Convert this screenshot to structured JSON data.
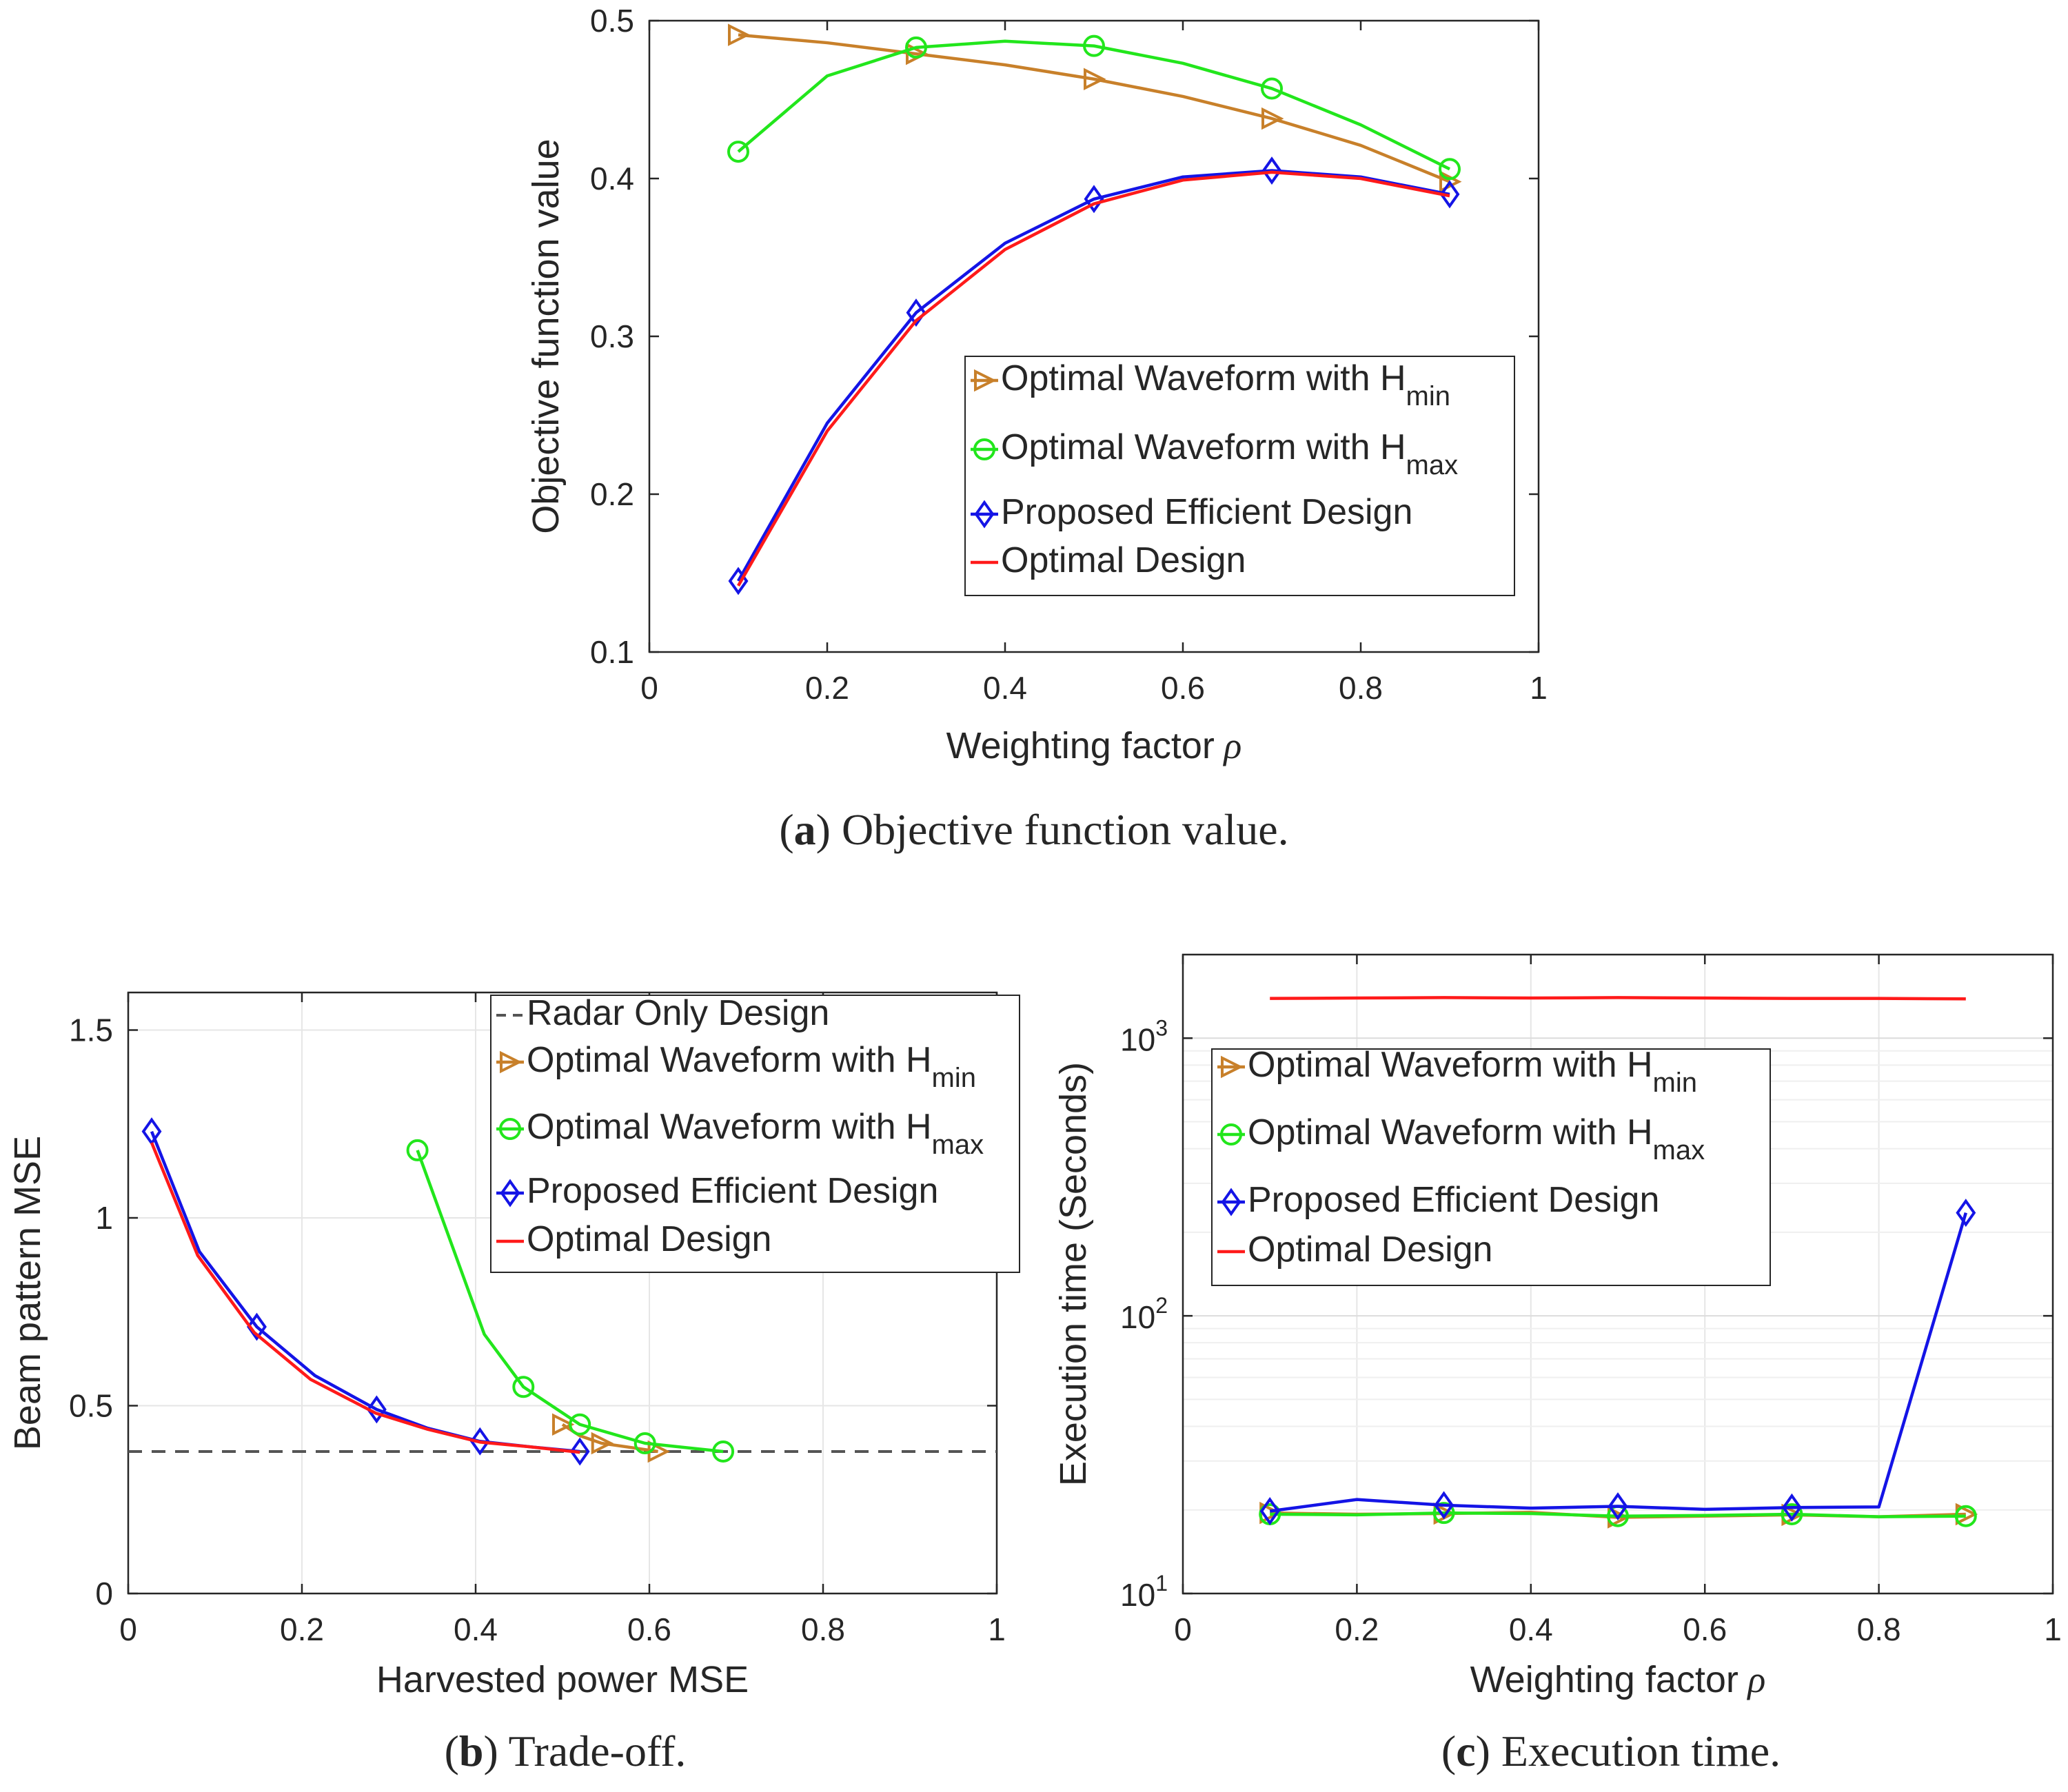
{
  "colors": {
    "hmin": "#C8802A",
    "hmax": "#22E61C",
    "proposed": "#1414E6",
    "optimal": "#FF1A1A",
    "radar": "#555555",
    "axis": "#262626",
    "grid": "#e6e6e6"
  },
  "chart_data": [
    {
      "id": "a",
      "type": "line",
      "caption": {
        "letter": "a",
        "text": " Objective function value."
      },
      "xlabel": "Weighting factor",
      "xlabel_symbol": "ρ",
      "ylabel": "Objective function value",
      "xlim": [
        0,
        1
      ],
      "ylim": [
        0.1,
        0.5
      ],
      "xticks": [
        "0",
        "0.2",
        "0.4",
        "0.6",
        "0.8",
        "1"
      ],
      "yticks": [
        "0.1",
        "0.2",
        "0.3",
        "0.4",
        "0.5"
      ],
      "grid": false,
      "legend_position": "inside-right",
      "legend": [
        {
          "base": "Optimal Waveform with H",
          "sub": "min"
        },
        {
          "base": "Optimal Waveform with H",
          "sub": "max"
        },
        {
          "base": "Proposed Efficient Design",
          "sub": ""
        },
        {
          "base": "Optimal Design",
          "sub": ""
        }
      ],
      "series": [
        {
          "key": "hmin",
          "marker": "triangle-right",
          "x": [
            0.1,
            0.2,
            0.3,
            0.4,
            0.5,
            0.6,
            0.7,
            0.8,
            0.9
          ],
          "y": [
            0.491,
            0.486,
            0.479,
            0.472,
            0.463,
            0.452,
            0.438,
            0.421,
            0.398
          ],
          "marker_x": [
            0.1,
            0.3,
            0.5,
            0.7,
            0.9
          ]
        },
        {
          "key": "hmax",
          "marker": "circle",
          "x": [
            0.1,
            0.2,
            0.3,
            0.4,
            0.5,
            0.6,
            0.7,
            0.8,
            0.9
          ],
          "y": [
            0.417,
            0.465,
            0.483,
            0.487,
            0.484,
            0.473,
            0.457,
            0.434,
            0.406
          ],
          "marker_x": [
            0.1,
            0.3,
            0.5,
            0.7,
            0.9
          ]
        },
        {
          "key": "proposed",
          "marker": "diamond",
          "x": [
            0.1,
            0.2,
            0.3,
            0.4,
            0.5,
            0.6,
            0.7,
            0.8,
            0.9
          ],
          "y": [
            0.145,
            0.245,
            0.315,
            0.359,
            0.387,
            0.401,
            0.405,
            0.401,
            0.39
          ],
          "marker_x": [
            0.1,
            0.3,
            0.5,
            0.7,
            0.9
          ]
        },
        {
          "key": "optimal",
          "marker": "none",
          "x": [
            0.1,
            0.2,
            0.3,
            0.4,
            0.5,
            0.6,
            0.7,
            0.8,
            0.9
          ],
          "y": [
            0.142,
            0.24,
            0.31,
            0.355,
            0.384,
            0.399,
            0.404,
            0.4,
            0.389
          ],
          "marker_x": []
        }
      ]
    },
    {
      "id": "b",
      "type": "line",
      "caption": {
        "letter": "b",
        "text": " Trade-off."
      },
      "xlabel": "Harvested power MSE",
      "xlabel_symbol": "",
      "ylabel": "Beam pattern MSE",
      "xlim": [
        0,
        1
      ],
      "ylim": [
        0,
        1.6
      ],
      "xticks": [
        "0",
        "0.2",
        "0.4",
        "0.6",
        "0.8",
        "1"
      ],
      "yticks": [
        "0",
        "0.5",
        "1",
        "1.5"
      ],
      "grid": true,
      "legend_position": "top-right",
      "legend": [
        {
          "base": "Radar Only Design",
          "sub": ""
        },
        {
          "base": "Optimal Waveform with H",
          "sub": "min"
        },
        {
          "base": "Optimal Waveform with H",
          "sub": "max"
        },
        {
          "base": "Proposed Efficient Design",
          "sub": ""
        },
        {
          "base": "Optimal Design",
          "sub": ""
        }
      ],
      "reference_line": {
        "key": "radar",
        "y": 0.378
      },
      "series": [
        {
          "key": "hmin",
          "marker": "triangle-right",
          "x": [
            0.5,
            0.52,
            0.545,
            0.575,
            0.61
          ],
          "y": [
            0.45,
            0.42,
            0.4,
            0.39,
            0.378
          ],
          "marker_x": [
            0.5,
            0.545,
            0.61
          ]
        },
        {
          "key": "hmax",
          "marker": "circle",
          "x": [
            0.333,
            0.41,
            0.455,
            0.52,
            0.595,
            0.685
          ],
          "y": [
            1.18,
            0.69,
            0.55,
            0.45,
            0.4,
            0.378
          ],
          "marker_x": [
            0.333,
            0.455,
            0.52,
            0.595,
            0.685
          ]
        },
        {
          "key": "proposed",
          "marker": "diamond",
          "x": [
            0.027,
            0.082,
            0.148,
            0.215,
            0.286,
            0.345,
            0.405,
            0.465,
            0.52
          ],
          "y": [
            1.23,
            0.91,
            0.71,
            0.58,
            0.49,
            0.44,
            0.405,
            0.39,
            0.378
          ],
          "marker_x": [
            0.027,
            0.148,
            0.286,
            0.405,
            0.52
          ]
        },
        {
          "key": "optimal",
          "marker": "none",
          "x": [
            0.027,
            0.08,
            0.145,
            0.21,
            0.285,
            0.345,
            0.405,
            0.465,
            0.52
          ],
          "y": [
            1.2,
            0.9,
            0.695,
            0.57,
            0.48,
            0.437,
            0.403,
            0.39,
            0.376
          ],
          "marker_x": []
        }
      ]
    },
    {
      "id": "c",
      "type": "line",
      "caption": {
        "letter": "c",
        "text": " Execution time."
      },
      "xlabel": "Weighting factor",
      "xlabel_symbol": "ρ",
      "ylabel": "Execution time (Seconds)",
      "xlim": [
        0,
        1
      ],
      "ylim": [
        10,
        2000
      ],
      "yscale": "log",
      "xticks": [
        "0",
        "0.2",
        "0.4",
        "0.6",
        "0.8",
        "1"
      ],
      "yticks": [
        {
          "base": "10",
          "exp": "1"
        },
        {
          "base": "10",
          "exp": "2"
        },
        {
          "base": "10",
          "exp": "3"
        }
      ],
      "grid": true,
      "legend_position": "top-left",
      "legend": [
        {
          "base": "Optimal Waveform with H",
          "sub": "min"
        },
        {
          "base": "Optimal Waveform with H",
          "sub": "max"
        },
        {
          "base": "Proposed Efficient Design",
          "sub": ""
        },
        {
          "base": "Optimal Design",
          "sub": ""
        }
      ],
      "series": [
        {
          "key": "hmin",
          "marker": "triangle-right",
          "x": [
            0.1,
            0.2,
            0.3,
            0.4,
            0.5,
            0.6,
            0.7,
            0.8,
            0.9
          ],
          "y": [
            19.5,
            19.3,
            19.4,
            19.6,
            18.8,
            19.0,
            19.2,
            18.9,
            19.3
          ],
          "marker_x": [
            0.1,
            0.3,
            0.5,
            0.7,
            0.9
          ]
        },
        {
          "key": "hmax",
          "marker": "circle",
          "x": [
            0.1,
            0.2,
            0.3,
            0.4,
            0.5,
            0.6,
            0.7,
            0.8,
            0.9
          ],
          "y": [
            19.3,
            19.2,
            19.5,
            19.4,
            19.0,
            19.1,
            19.3,
            18.9,
            19.0
          ],
          "marker_x": [
            0.1,
            0.3,
            0.5,
            0.7,
            0.9
          ]
        },
        {
          "key": "proposed",
          "marker": "diamond",
          "x": [
            0.1,
            0.2,
            0.3,
            0.4,
            0.5,
            0.6,
            0.7,
            0.8,
            0.9
          ],
          "y": [
            19.8,
            21.8,
            20.8,
            20.3,
            20.6,
            20.1,
            20.4,
            20.5,
            235
          ],
          "marker_x": [
            0.1,
            0.3,
            0.5,
            0.7,
            0.9
          ]
        },
        {
          "key": "optimal",
          "marker": "none",
          "x": [
            0.1,
            0.2,
            0.3,
            0.4,
            0.5,
            0.6,
            0.7,
            0.8,
            0.9
          ],
          "y": [
            1390,
            1395,
            1400,
            1395,
            1400,
            1395,
            1390,
            1390,
            1385
          ],
          "marker_x": []
        }
      ]
    }
  ]
}
